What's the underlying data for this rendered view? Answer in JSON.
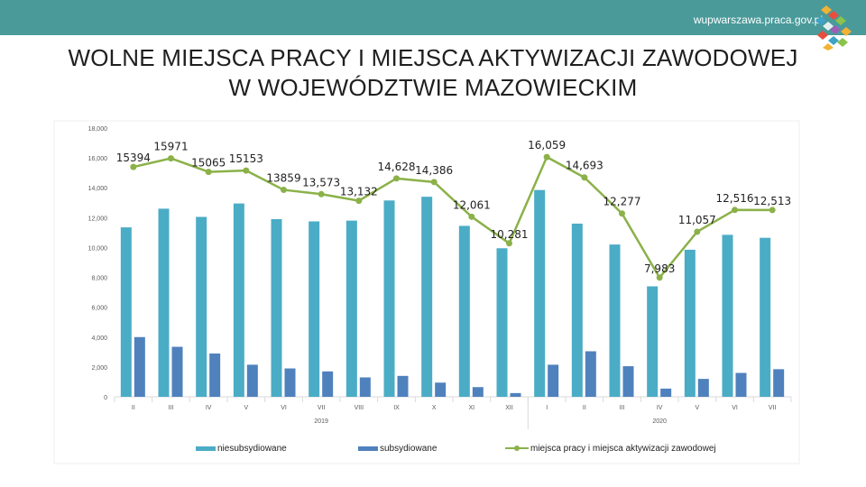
{
  "header": {
    "site_url": "wupwarszawa.praca.gov.pl"
  },
  "title": {
    "line1": "WOLNE MIEJSCA PRACY I MIEJSCA AKTYWIZACJI ZAWODOWEJ",
    "line2": "W WOJEWÓDZTWIE MAZOWIECKIM"
  },
  "colors": {
    "header_bg": "#4a9a9a",
    "bar_niesubsydiowane": "#4bacc6",
    "bar_subsydiowane": "#4f81bd",
    "line_total": "#8bb149"
  },
  "chart_data": {
    "type": "bar",
    "categories": [
      "II",
      "III",
      "IV",
      "V",
      "VI",
      "VII",
      "VIII",
      "IX",
      "X",
      "XI",
      "XII",
      "I",
      "II",
      "III",
      "IV",
      "V",
      "VI",
      "VII"
    ],
    "groups": [
      {
        "label": "2019",
        "count": 11
      },
      {
        "label": "2020",
        "count": 7
      }
    ],
    "series": [
      {
        "name": "niesubsydiowane",
        "type": "bar",
        "color": "#4bacc6",
        "values": [
          11350,
          12600,
          12050,
          12950,
          11900,
          11750,
          11800,
          13150,
          13400,
          11450,
          9950,
          13850,
          11600,
          10200,
          7400,
          9850,
          10850,
          10650
        ]
      },
      {
        "name": "subsydiowane",
        "type": "bar",
        "color": "#4f81bd",
        "values": [
          4000,
          3350,
          2900,
          2150,
          1900,
          1700,
          1300,
          1400,
          950,
          650,
          250,
          2150,
          3050,
          2050,
          550,
          1200,
          1600,
          1850
        ]
      },
      {
        "name": "miejsca pracy i miejsca aktywizacji zawodowej",
        "type": "line",
        "color": "#8bb149",
        "values": [
          15394,
          15971,
          15065,
          15153,
          13859,
          13573,
          13132,
          14628,
          14386,
          12061,
          10281,
          16059,
          14693,
          12277,
          7983,
          11057,
          12516,
          12513
        ],
        "data_labels": [
          "15394",
          "15971",
          "15065",
          "15153",
          "13859",
          "13,573",
          "13,132",
          "14,628",
          "14,386",
          "12,061",
          "10,281",
          "16,059",
          "14,693",
          "12,277",
          "7,983",
          "11,057",
          "12,516",
          "12,513"
        ]
      }
    ],
    "y_ticks": [
      "0",
      "2,000",
      "4,000",
      "6,000",
      "8,000",
      "10,000",
      "12,000",
      "14,000",
      "16,000",
      "18,000"
    ],
    "ylim": [
      0,
      18000
    ],
    "grid": false,
    "legend_position": "bottom"
  }
}
